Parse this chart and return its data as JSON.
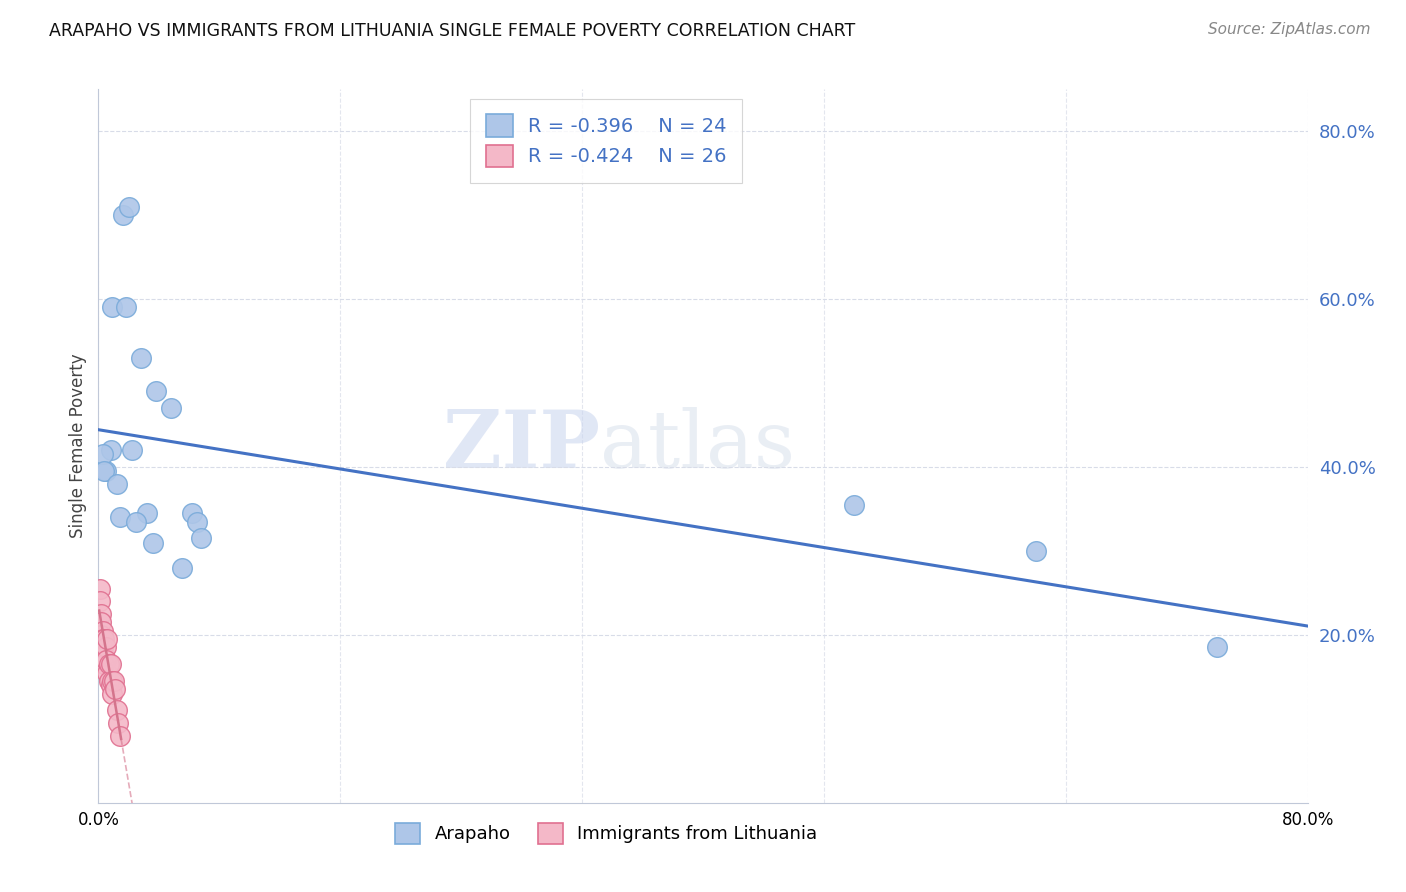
{
  "title": "ARAPAHO VS IMMIGRANTS FROM LITHUANIA SINGLE FEMALE POVERTY CORRELATION CHART",
  "source": "Source: ZipAtlas.com",
  "ylabel": "Single Female Poverty",
  "arapaho_color": "#aec6e8",
  "arapaho_edge": "#7aabda",
  "lithuania_color": "#f4b8c8",
  "lithuania_edge": "#e07090",
  "trendline_arapaho": "#4472c4",
  "trendline_lithuania": "#d4748c",
  "watermark_zip": "ZIP",
  "watermark_atlas": "atlas",
  "legend_r_arapaho": "-0.396",
  "legend_n_arapaho": "24",
  "legend_r_lithuania": "-0.424",
  "legend_n_lithuania": "26",
  "arapaho_x": [
    0.016,
    0.02,
    0.009,
    0.018,
    0.028,
    0.038,
    0.048,
    0.008,
    0.005,
    0.022,
    0.032,
    0.036,
    0.062,
    0.065,
    0.068,
    0.003,
    0.004,
    0.012,
    0.014,
    0.025,
    0.5,
    0.62,
    0.74,
    0.055
  ],
  "arapaho_y": [
    0.7,
    0.71,
    0.59,
    0.59,
    0.53,
    0.49,
    0.47,
    0.42,
    0.395,
    0.42,
    0.345,
    0.31,
    0.345,
    0.335,
    0.315,
    0.415,
    0.395,
    0.38,
    0.34,
    0.335,
    0.355,
    0.3,
    0.185,
    0.28
  ],
  "lithuania_x": [
    0.001,
    0.001,
    0.002,
    0.002,
    0.002,
    0.003,
    0.003,
    0.003,
    0.004,
    0.004,
    0.004,
    0.005,
    0.005,
    0.006,
    0.006,
    0.007,
    0.007,
    0.008,
    0.008,
    0.009,
    0.009,
    0.01,
    0.011,
    0.012,
    0.013,
    0.014
  ],
  "lithuania_y": [
    0.255,
    0.24,
    0.225,
    0.215,
    0.2,
    0.205,
    0.195,
    0.185,
    0.195,
    0.175,
    0.165,
    0.185,
    0.17,
    0.195,
    0.155,
    0.165,
    0.145,
    0.165,
    0.14,
    0.145,
    0.13,
    0.145,
    0.135,
    0.11,
    0.095,
    0.08
  ],
  "xlim": [
    0.0,
    0.8
  ],
  "ylim": [
    0.0,
    0.85
  ],
  "yticks": [
    0.2,
    0.4,
    0.6,
    0.8
  ],
  "ytick_labels": [
    "20.0%",
    "40.0%",
    "60.0%",
    "80.0%"
  ],
  "xticks": [
    0.0,
    0.16,
    0.32,
    0.48,
    0.64,
    0.8
  ],
  "xtick_labels_show": [
    "0.0%",
    "80.0%"
  ],
  "xtick_show_positions": [
    0.0,
    0.8
  ],
  "grid_color": "#d8dce8",
  "trendline_a_x0": 0.0,
  "trendline_a_x1": 0.8
}
